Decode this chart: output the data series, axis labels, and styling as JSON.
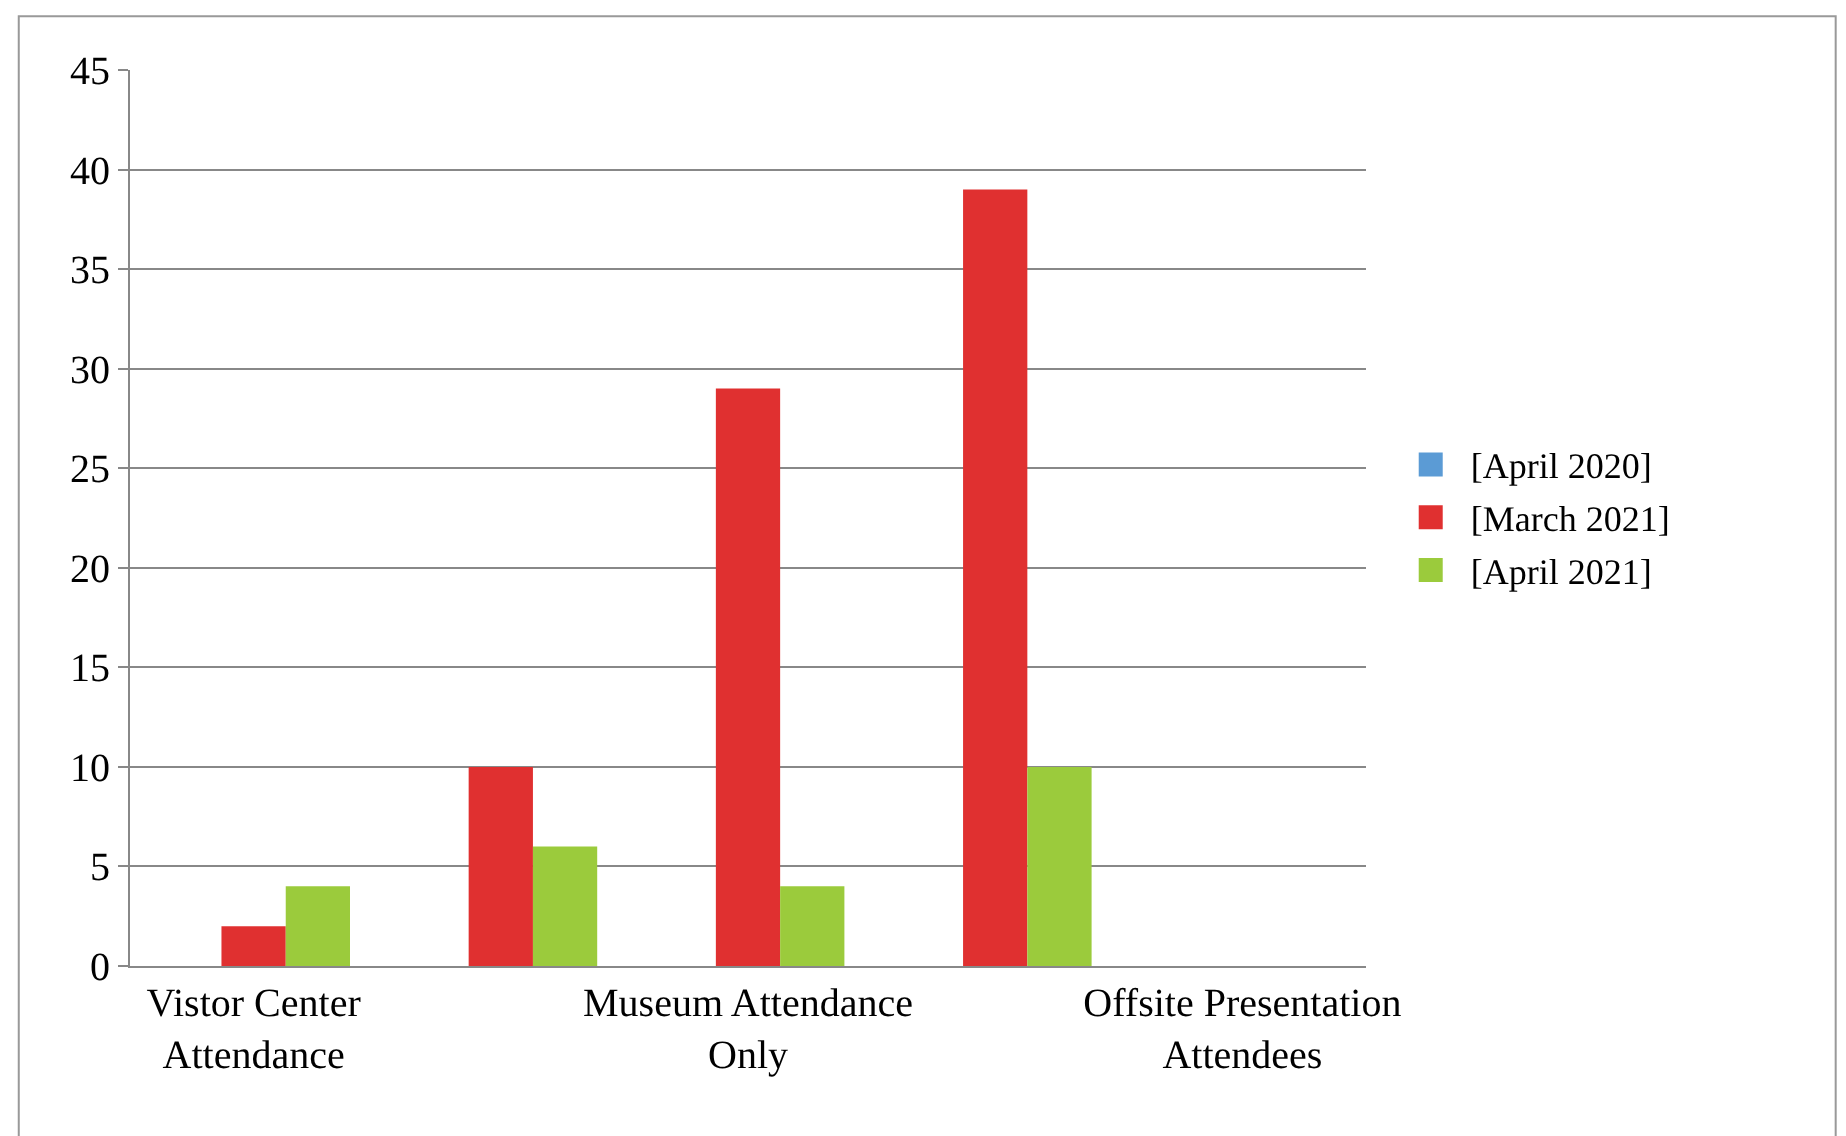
{
  "chart_data": {
    "type": "bar",
    "categories": [
      "Vistor Center Attendance",
      null,
      "Museum Attendance Only",
      null,
      "Offsite Presentation Attendees"
    ],
    "series": [
      {
        "name": "[April 2020]",
        "color": "#5b9bd5",
        "values": [
          0,
          0,
          0,
          0,
          0
        ]
      },
      {
        "name": "[March 2021]",
        "color": "#e03030",
        "values": [
          2,
          10,
          29,
          39,
          0
        ]
      },
      {
        "name": "[April 2021]",
        "color": "#9bcb3c",
        "values": [
          4,
          6,
          4,
          10,
          0
        ]
      }
    ],
    "ylim": [
      0,
      45
    ],
    "yticks": [
      0,
      5,
      10,
      15,
      20,
      25,
      30,
      35,
      40,
      45
    ],
    "grid": "y",
    "legend": "right"
  }
}
